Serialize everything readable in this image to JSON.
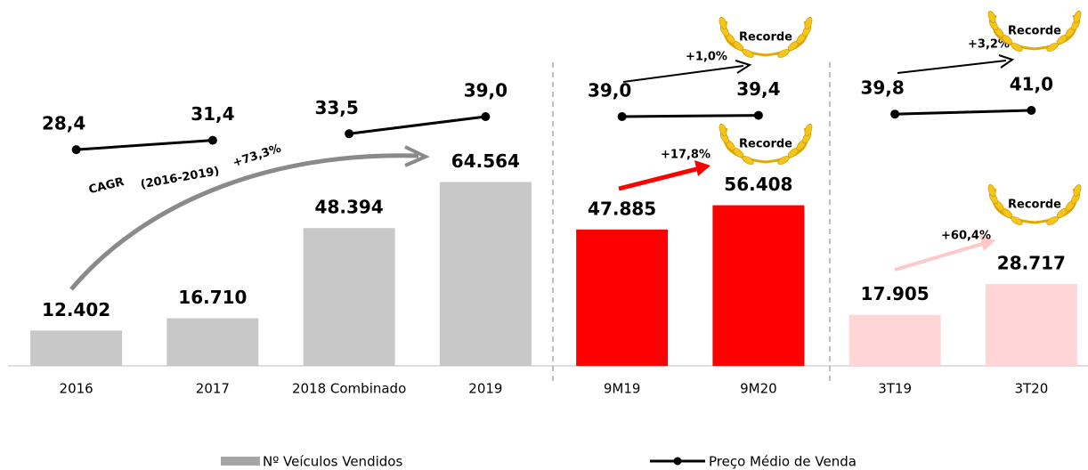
{
  "chart_data": {
    "type": "bar-line",
    "categories": [
      "2016",
      "2017",
      "2018 Combinado",
      "2019",
      "9M19",
      "9M20",
      "3T19",
      "3T20"
    ],
    "series": [
      {
        "name": "Nº Veículos Vendidos",
        "color": "#c8c8c8",
        "colors": [
          "#c8c8c8",
          "#c8c8c8",
          "#c8c8c8",
          "#c8c8c8",
          "#ff0000",
          "#ff0000",
          "#ffd5d5",
          "#ffd5d5"
        ],
        "values": [
          12402,
          16710,
          48394,
          64564,
          47885,
          56408,
          17905,
          28717
        ],
        "value_labels": [
          "12.402",
          "16.710",
          "48.394",
          "64.564",
          "47.885",
          "56.408",
          "17.905",
          "28.717"
        ]
      },
      {
        "name": "Preço Médio de Venda",
        "color": "#000000",
        "axis": "y2",
        "values": [
          28.4,
          31.4,
          33.5,
          39.0,
          39.0,
          39.4,
          39.8,
          41.0
        ],
        "value_labels": [
          "28,4",
          "31,4",
          "33,5",
          "39,0",
          "39,0",
          "39,4",
          "39,8",
          "41,0"
        ]
      }
    ],
    "ylim": [
      0,
      116000
    ],
    "y2lim": [
      -41,
      65
    ],
    "annotations": [
      "CAGR",
      "(2016-2019)",
      "+73,3%",
      "+1,0%",
      "+17,8%",
      "+3,2%",
      "+60,4%",
      "Recorde",
      "Recorde",
      "Recorde",
      "Recorde"
    ]
  }
}
